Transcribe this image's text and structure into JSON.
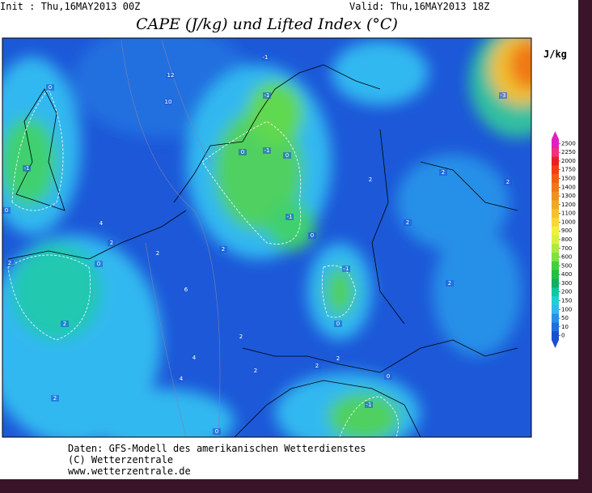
{
  "header": {
    "init": "Init : Thu,16MAY2013 00Z",
    "valid": "Valid: Thu,16MAY2013 18Z",
    "title": "CAPE (J/kg) und Lifted Index (°C)"
  },
  "colorbar": {
    "unit": "J/kg",
    "levels": [
      2500,
      2250,
      2000,
      1750,
      1500,
      1400,
      1300,
      1200,
      1100,
      1000,
      900,
      800,
      700,
      600,
      500,
      400,
      300,
      200,
      150,
      100,
      50,
      10,
      0
    ],
    "colors": [
      "#e020c0",
      "#f03080",
      "#e82020",
      "#f04010",
      "#f06010",
      "#f07818",
      "#f09020",
      "#f0a828",
      "#f8c030",
      "#f8d838",
      "#f0f040",
      "#d8f040",
      "#b0e840",
      "#80e040",
      "#40d040",
      "#20c040",
      "#10b060",
      "#10c8a0",
      "#20d0d0",
      "#30b8f0",
      "#2890e8",
      "#2070e0",
      "#1850d0"
    ]
  },
  "contour_labels": [
    "12",
    "10",
    "0",
    "-1",
    "-1",
    "0",
    "-1",
    "0",
    "-1",
    "0",
    "4",
    "2",
    "2",
    "6",
    "0",
    "2",
    "-1",
    "0",
    "2",
    "2",
    "2",
    "2",
    "4",
    "4",
    "2",
    "2",
    "0",
    "2",
    "-1",
    "-3",
    "2",
    "2",
    "0",
    "2",
    "-1",
    "2",
    "0",
    "2"
  ],
  "footer": {
    "line1": "Daten: GFS-Modell des amerikanischen Wetterdienstes",
    "line2": "(C) Wetterzentrale",
    "line3": "www.wetterzentrale.de"
  }
}
